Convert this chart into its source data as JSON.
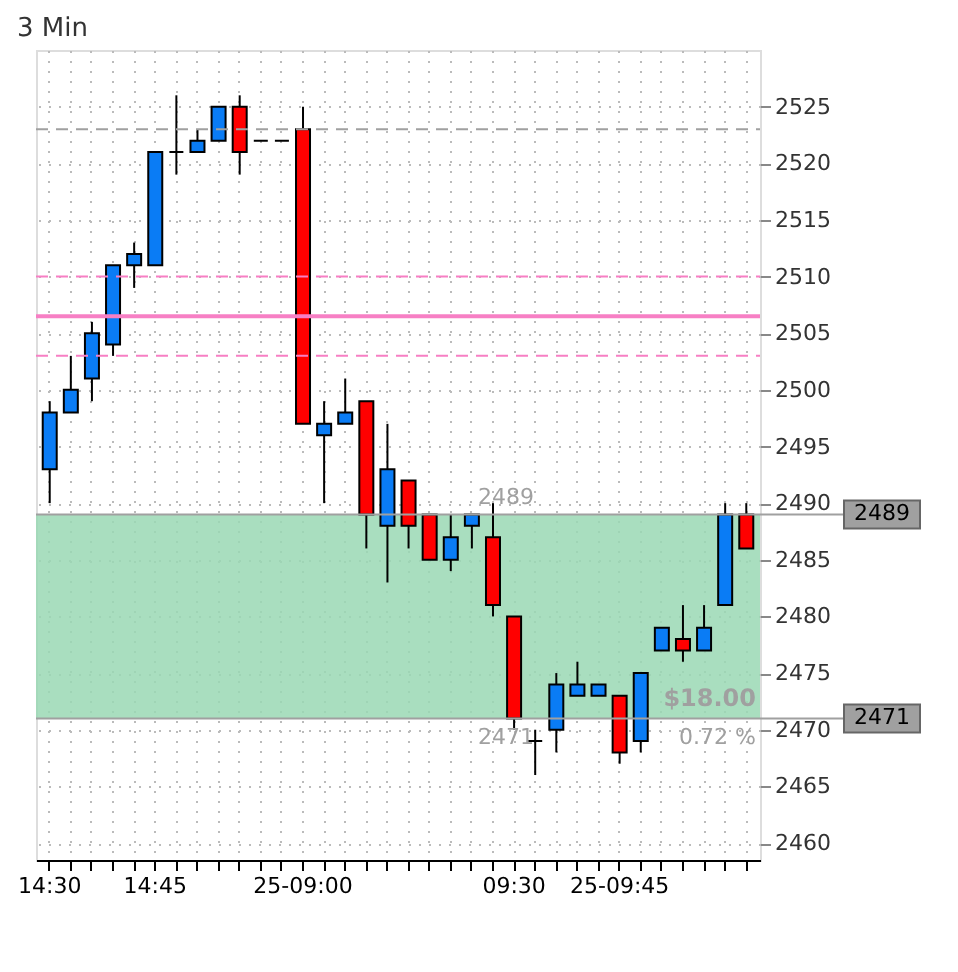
{
  "chart_data": {
    "type": "candlestick",
    "title": "3 Min",
    "categories": [
      "14:30",
      null,
      null,
      null,
      null,
      "14:45",
      null,
      null,
      null,
      null,
      null,
      null,
      "25-09:00",
      null,
      null,
      null,
      null,
      null,
      null,
      null,
      null,
      null,
      "09:30",
      null,
      null,
      null,
      null,
      "25-09:45",
      null,
      null,
      null,
      null,
      null,
      null
    ],
    "ohlc": [
      [
        2493,
        2499,
        2490,
        2498
      ],
      [
        2498,
        2503,
        2498,
        2500
      ],
      [
        2501,
        2506,
        2499,
        2505
      ],
      [
        2504,
        2511,
        2503,
        2511
      ],
      [
        2511,
        2513,
        2509,
        2512
      ],
      [
        2511,
        2521,
        2511,
        2521
      ],
      [
        2521,
        2526,
        2519,
        2521
      ],
      [
        2521,
        2523,
        2521,
        2522
      ],
      [
        2522,
        2525,
        2522,
        2525
      ],
      [
        2525,
        2526,
        2519,
        2521
      ],
      [
        2522,
        2522,
        2522,
        2522
      ],
      [
        2522,
        2522,
        2522,
        2522
      ],
      [
        2523,
        2525,
        2497,
        2497
      ],
      [
        2496,
        2499,
        2490,
        2497
      ],
      [
        2497,
        2501,
        2497,
        2498
      ],
      [
        2499,
        2499,
        2486,
        2489
      ],
      [
        2488,
        2497,
        2483,
        2493
      ],
      [
        2492,
        2492,
        2486,
        2488
      ],
      [
        2489,
        2489,
        2485,
        2485
      ],
      [
        2485,
        2489,
        2484,
        2487
      ],
      [
        2488,
        2489,
        2486,
        2489
      ],
      [
        2487,
        2490,
        2480,
        2481
      ],
      [
        2480,
        2480,
        2470,
        2471
      ],
      [
        2469,
        2470,
        2466,
        2469
      ],
      [
        2470,
        2475,
        2468,
        2474
      ],
      [
        2473,
        2476,
        2473,
        2474
      ],
      [
        2473,
        2474,
        2473,
        2474
      ],
      [
        2473,
        2473,
        2467,
        2468
      ],
      [
        2469,
        2475,
        2468,
        2475
      ],
      [
        2477,
        2479,
        2477,
        2479
      ],
      [
        2478,
        2481,
        2476,
        2477
      ],
      [
        2477,
        2481,
        2477,
        2479
      ],
      [
        2481,
        2490,
        2481,
        2489
      ],
      [
        2489,
        2490,
        2486,
        2486
      ]
    ],
    "colors": [
      "#0a7cf5",
      "#0a7cf5",
      "#0a7cf5",
      "#0a7cf5",
      "#0a7cf5",
      "#0a7cf5",
      "#000000",
      "#0a7cf5",
      "#0a7cf5",
      "#ff0000",
      "#000000",
      "#000000",
      "#ff0000",
      "#0a7cf5",
      "#0a7cf5",
      "#ff0000",
      "#0a7cf5",
      "#ff0000",
      "#ff0000",
      "#0a7cf5",
      "#0a7cf5",
      "#ff0000",
      "#ff0000",
      "#000000",
      "#0a7cf5",
      "#0a7cf5",
      "#0a7cf5",
      "#ff0000",
      "#0a7cf5",
      "#0a7cf5",
      "#ff0000",
      "#0a7cf5",
      "#0a7cf5",
      "#ff0000"
    ],
    "ylim": [
      2458.5,
      2530
    ],
    "yticks": [
      2460,
      2465,
      2470,
      2475,
      2480,
      2485,
      2490,
      2495,
      2500,
      2505,
      2510,
      2515,
      2520,
      2525
    ],
    "grid": true,
    "ref_lines": [
      {
        "axis": "y",
        "value": 2523,
        "color": "#a0a0a0",
        "line_style": "dashed"
      },
      {
        "axis": "y",
        "value": 2510,
        "color": "#f77fc4",
        "line_style": "dashed"
      },
      {
        "axis": "y",
        "value": 2506.5,
        "color": "#f77fc4",
        "line_style": "solid"
      },
      {
        "axis": "y",
        "value": 2503,
        "color": "#f77fc4",
        "line_style": "dashed"
      },
      {
        "axis": "y",
        "value": 2489,
        "label": "2489",
        "color": "#a0a0a0",
        "line_style": "solid"
      },
      {
        "axis": "y",
        "value": 2471,
        "label": "2471",
        "color": "#a0a0a0",
        "line_style": "solid"
      }
    ],
    "bands": [
      {
        "axis": "y",
        "from": 2471,
        "to": 2489,
        "color": "#9ad8b4"
      }
    ],
    "annotations": [
      "2489",
      "2471",
      "$18.00",
      "0.72 %"
    ]
  }
}
